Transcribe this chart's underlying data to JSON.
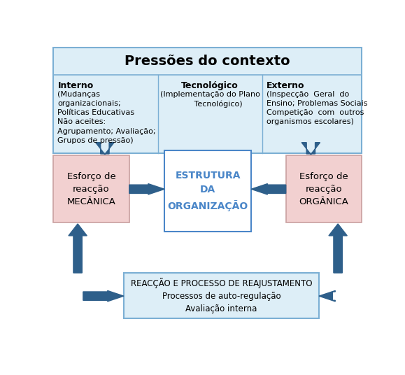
{
  "title": "Pressões do contexto",
  "top_box_bg": "#ddeef7",
  "top_box_border": "#7bafd4",
  "col_interno_title": "Interno",
  "col_interno_text": "(Mudanças\norganizacionais;\nPolíticas Educativas\nNão aceites:\nAgrupamento; Avaliação;\nGrupos de pressão)",
  "col_tec_title": "Tecnológico",
  "col_tec_text": "(Implementação do Plano\n       Tecnológico)",
  "col_externo_title": "Externo",
  "col_externo_text": "(Inspecção  Geral  do\nEnsino; Problemas Sociais\nCompetição  com  outros\norganismos escolares)",
  "center_box_text": "ESTRUTURA\nDA\nORGANIZAÇÃO",
  "center_box_color": "#4a86c8",
  "center_box_bg": "#ffffff",
  "center_box_border": "#4a86c8",
  "left_box_text": "Esforço de\nreacção\nMECÂNICA",
  "right_box_text": "Esforço de\nreacção\nORGÂNICA",
  "side_box_bg": "#f2d0d0",
  "side_box_border": "#c9a0a0",
  "bottom_box_text": "REACÇÃO E PROCESSO DE REAJUSTAMENTO\nProcessos de auto-regulação\nAvaliação interna",
  "bottom_box_bg": "#ddeef7",
  "bottom_box_border": "#7bafd4",
  "arrow_color": "#2e5f8a",
  "figsize": [
    5.79,
    5.36
  ],
  "dpi": 100
}
